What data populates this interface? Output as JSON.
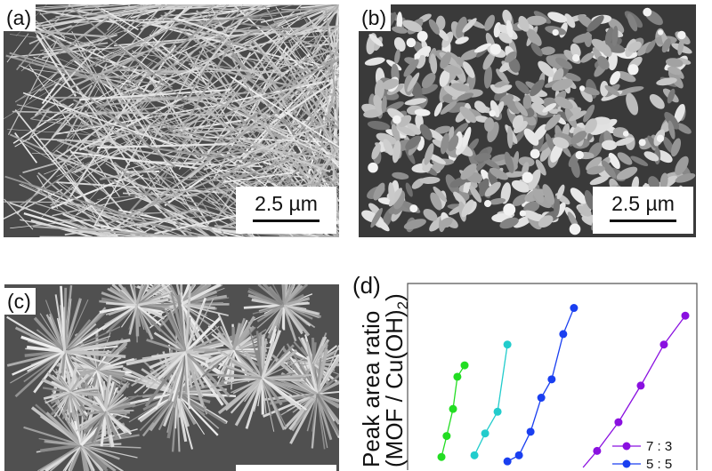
{
  "panels": {
    "a": {
      "label": "(a)",
      "scale_bar": "2.5 µm"
    },
    "b": {
      "label": "(b)",
      "scale_bar": "2.5 µm"
    },
    "c": {
      "label": "(c)"
    },
    "d": {
      "label": "(d)"
    }
  },
  "chart_data": {
    "type": "line",
    "ylabel_line1": "Peak area ratio",
    "ylabel_line2": "(MOF / Cu(OH)",
    "ylabel_subscript": "2",
    "ylabel_close": ")",
    "xlim": [
      0,
      100
    ],
    "ylim": [
      0,
      100
    ],
    "grid": false,
    "legend_position": "bottom-right",
    "series": [
      {
        "color": "#22dd22",
        "x": [
          11.7,
          13.5,
          15.7,
          17.2,
          19.7
        ],
        "y": [
          5.7,
          17.1,
          31.8,
          49.3,
          55.5
        ]
      },
      {
        "color": "#22cccc",
        "x": [
          23.1,
          26.8,
          31.1,
          34.5
        ],
        "y": [
          6.6,
          18.5,
          30.3,
          66.8
        ]
      },
      {
        "name": "5 : 5",
        "color": "#1a3ff0",
        "x": [
          34.5,
          38.5,
          42.5,
          46.2,
          49.8,
          53.8,
          57.5
        ],
        "y": [
          3.3,
          6.6,
          19.4,
          37.9,
          47.9,
          72.5,
          86.7
        ]
      },
      {
        "name": "7 : 3",
        "color": "#8a10e0",
        "x": [
          58.5,
          65.5,
          72.9,
          80.6,
          88.6,
          96.0
        ],
        "y": [
          -4,
          9.0,
          24.6,
          44.5,
          66.8,
          82.5
        ]
      }
    ]
  }
}
